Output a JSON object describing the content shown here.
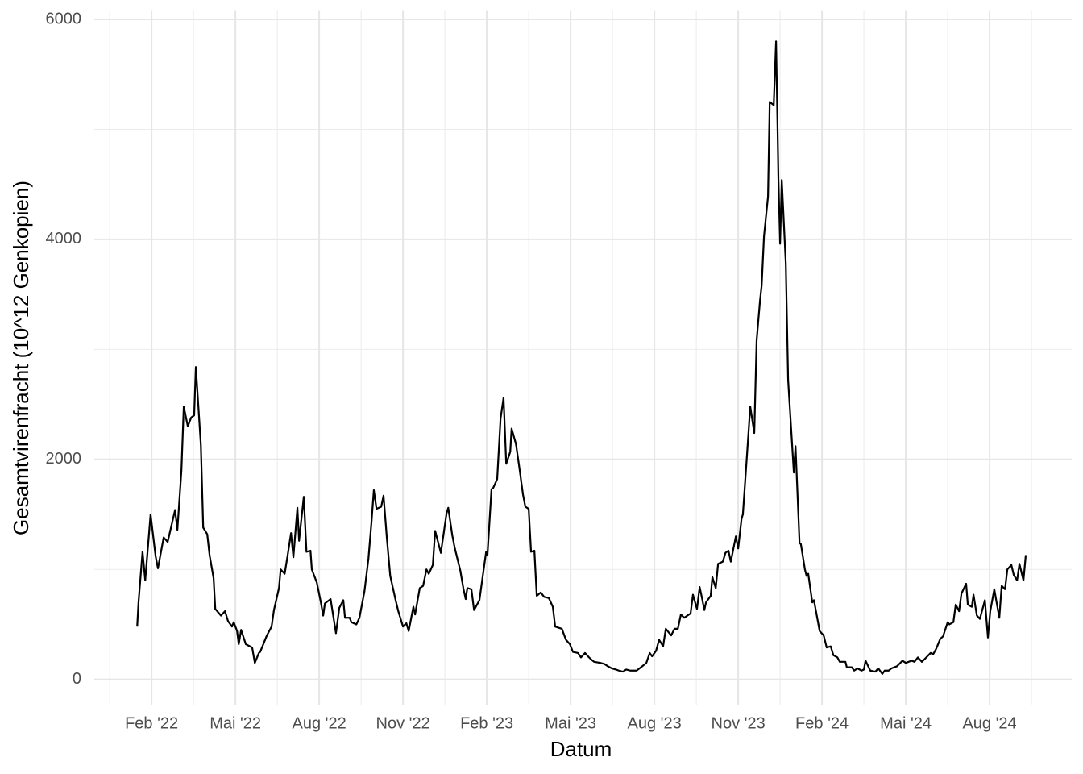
{
  "chart_data": {
    "type": "line",
    "xlabel": "Datum",
    "ylabel": "Gesamtvirenfracht (10^12 Genkopien)",
    "color": "#000000",
    "grid": true,
    "xlim": [
      2021.912,
      2024.828
    ],
    "ylim": [
      -237,
      6077
    ],
    "yticks": [
      0,
      2000,
      4000,
      6000
    ],
    "xticks": [
      {
        "value": 2022.083,
        "label": "Feb '22"
      },
      {
        "value": 2022.333,
        "label": "Mai '22"
      },
      {
        "value": 2022.583,
        "label": "Aug '22"
      },
      {
        "value": 2022.833,
        "label": "Nov '22"
      },
      {
        "value": 2023.083,
        "label": "Feb '23"
      },
      {
        "value": 2023.333,
        "label": "Mai '23"
      },
      {
        "value": 2023.583,
        "label": "Aug '23"
      },
      {
        "value": 2023.833,
        "label": "Nov '23"
      },
      {
        "value": 2024.083,
        "label": "Feb '24"
      },
      {
        "value": 2024.333,
        "label": "Mai '24"
      },
      {
        "value": 2024.583,
        "label": "Aug '24"
      }
    ],
    "x": [
      2022.04,
      2022.044,
      2022.056,
      2022.064,
      2022.08,
      2022.095,
      2022.102,
      2022.119,
      2022.131,
      2022.153,
      2022.16,
      2022.172,
      2022.179,
      2022.191,
      2022.201,
      2022.21,
      2022.215,
      2022.23,
      2022.237,
      2022.249,
      2022.256,
      2022.268,
      2022.273,
      2022.29,
      2022.302,
      2022.311,
      2022.323,
      2022.328,
      2022.338,
      2022.343,
      2022.35,
      2022.364,
      2022.383,
      2022.391,
      2022.403,
      2022.407,
      2022.427,
      2022.441,
      2022.448,
      2022.463,
      2022.468,
      2022.48,
      2022.489,
      2022.499,
      2022.506,
      2022.518,
      2022.523,
      2022.537,
      2022.545,
      2022.557,
      2022.561,
      2022.576,
      2022.588,
      2022.595,
      2022.6,
      2022.617,
      2022.633,
      2022.643,
      2022.655,
      2022.66,
      2022.674,
      2022.679,
      2022.694,
      2022.703,
      2022.718,
      2022.73,
      2022.739,
      2022.746,
      2022.754,
      2022.768,
      2022.775,
      2022.785,
      2022.795,
      2022.811,
      2022.819,
      2022.833,
      2022.843,
      2022.85,
      2022.864,
      2022.869,
      2022.883,
      2022.893,
      2022.903,
      2022.91,
      2022.922,
      2022.929,
      2022.946,
      2022.963,
      2022.968,
      2022.98,
      2022.987,
      2023.004,
      2023.013,
      2023.02,
      2023.025,
      2023.037,
      2023.045,
      2023.061,
      2023.081,
      2023.085,
      2023.097,
      2023.102,
      2023.114,
      2023.124,
      2023.133,
      2023.141,
      2023.153,
      2023.157,
      2023.17,
      2023.179,
      2023.191,
      2023.198,
      2023.208,
      2023.215,
      2023.225,
      2023.232,
      2023.244,
      2023.254,
      2023.268,
      2023.28,
      2023.287,
      2023.307,
      2023.319,
      2023.331,
      2023.34,
      2023.355,
      2023.364,
      2023.376,
      2023.388,
      2023.395,
      2023.403,
      2023.422,
      2023.434,
      2023.444,
      2023.456,
      2023.468,
      2023.477,
      2023.489,
      2023.499,
      2023.511,
      2023.53,
      2023.547,
      2023.559,
      2023.569,
      2023.576,
      2023.588,
      2023.597,
      2023.609,
      2023.617,
      2023.633,
      2023.643,
      2023.653,
      2023.662,
      2023.672,
      2023.691,
      2023.698,
      2023.71,
      2023.718,
      2023.725,
      2023.732,
      2023.737,
      2023.751,
      2023.756,
      2023.766,
      2023.773,
      2023.787,
      2023.795,
      2023.804,
      2023.811,
      2023.826,
      2023.833,
      2023.843,
      2023.847,
      2023.859,
      2023.869,
      2023.881,
      2023.888,
      2023.898,
      2023.903,
      2023.91,
      2023.922,
      2023.927,
      2023.939,
      2023.946,
      2023.953,
      2023.958,
      2023.963,
      2023.975,
      2023.982,
      2023.999,
      2024.004,
      2024.016,
      2024.02,
      2024.032,
      2024.037,
      2024.042,
      2024.054,
      2024.059,
      2024.076,
      2024.088,
      2024.097,
      2024.109,
      2024.117,
      2024.129,
      2024.136,
      2024.153,
      2024.157,
      2024.172,
      2024.179,
      2024.189,
      2024.201,
      2024.208,
      2024.213,
      2024.227,
      2024.242,
      2024.251,
      2024.263,
      2024.27,
      2024.282,
      2024.29,
      2024.307,
      2024.323,
      2024.333,
      2024.35,
      2024.359,
      2024.369,
      2024.381,
      2024.391,
      2024.407,
      2024.415,
      2024.424,
      2024.436,
      2024.444,
      2024.458,
      2024.463,
      2024.475,
      2024.482,
      2024.492,
      2024.499,
      2024.513,
      2024.518,
      2024.53,
      2024.535,
      2024.545,
      2024.554,
      2024.569,
      2024.578,
      2024.585,
      2024.597,
      2024.612,
      2024.619,
      2024.629,
      2024.636,
      2024.648,
      2024.655,
      2024.665,
      2024.672,
      2024.684,
      2024.691
    ],
    "values": [
      480,
      700,
      1160,
      900,
      1500,
      1120,
      1010,
      1290,
      1250,
      1540,
      1360,
      1900,
      2480,
      2300,
      2380,
      2400,
      2840,
      2130,
      1380,
      1320,
      1130,
      920,
      640,
      580,
      620,
      530,
      480,
      520,
      440,
      320,
      450,
      320,
      290,
      150,
      240,
      250,
      400,
      480,
      630,
      830,
      1000,
      960,
      1130,
      1330,
      1110,
      1560,
      1260,
      1660,
      1160,
      1170,
      1000,
      880,
      700,
      580,
      690,
      730,
      420,
      650,
      720,
      560,
      560,
      520,
      500,
      560,
      800,
      1100,
      1430,
      1720,
      1550,
      1570,
      1670,
      1280,
      940,
      720,
      620,
      480,
      510,
      440,
      660,
      590,
      830,
      850,
      1000,
      960,
      1040,
      1350,
      1150,
      1510,
      1560,
      1310,
      1200,
      990,
      830,
      730,
      830,
      820,
      630,
      720,
      1160,
      1130,
      1730,
      1740,
      1820,
      2370,
      2560,
      1960,
      2070,
      2280,
      2140,
      1950,
      1680,
      1570,
      1550,
      1160,
      1170,
      760,
      790,
      750,
      740,
      660,
      480,
      460,
      360,
      320,
      250,
      240,
      200,
      240,
      200,
      180,
      160,
      150,
      140,
      120,
      100,
      90,
      80,
      70,
      90,
      80,
      80,
      120,
      150,
      240,
      210,
      260,
      360,
      300,
      460,
      400,
      460,
      460,
      590,
      560,
      600,
      770,
      640,
      840,
      740,
      630,
      700,
      760,
      930,
      830,
      1050,
      1070,
      1150,
      1170,
      1070,
      1300,
      1190,
      1460,
      1500,
      2030,
      2480,
      2240,
      3080,
      3440,
      3580,
      4030,
      4390,
      5250,
      5220,
      5800,
      4550,
      3960,
      4540,
      3780,
      2720,
      1880,
      2120,
      1240,
      1230,
      1000,
      940,
      960,
      700,
      720,
      440,
      400,
      290,
      300,
      220,
      200,
      160,
      160,
      110,
      110,
      80,
      100,
      80,
      90,
      170,
      80,
      70,
      100,
      50,
      80,
      80,
      100,
      120,
      170,
      150,
      170,
      160,
      200,
      160,
      190,
      240,
      230,
      280,
      370,
      390,
      520,
      500,
      520,
      680,
      620,
      780,
      870,
      680,
      660,
      770,
      580,
      550,
      720,
      380,
      620,
      820,
      560,
      850,
      820,
      1000,
      1040,
      950,
      900,
      1050,
      900,
      1130
    ]
  }
}
